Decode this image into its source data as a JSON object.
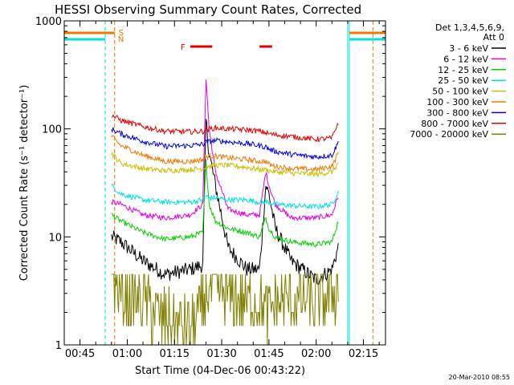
{
  "chart_data": {
    "type": "line",
    "title": "HESSI Observing Summary Count Rates, Corrected",
    "xlabel": "Start Time (04-Dec-06 00:43:22)",
    "ylabel": "Corrected Count Rate (s⁻¹ detector⁻¹)",
    "y_scale": "log",
    "ylim": [
      1,
      1000
    ],
    "xlim": [
      "00:40",
      "02:22"
    ],
    "x_ticks": [
      "00:45",
      "01:00",
      "01:15",
      "01:30",
      "01:45",
      "02:00",
      "02:15"
    ],
    "y_ticks": [
      "1",
      "10",
      "100",
      "1000"
    ],
    "grid": false,
    "legend_position": "right",
    "legend_header": [
      "Det 1,3,4,5,6,9,",
      "Att 0"
    ],
    "footer_stamp": "20-Mar-2010 08:55",
    "time_points": [
      "00:55",
      "00:58",
      "01:05",
      "01:12",
      "01:20",
      "01:24",
      "01:25",
      "01:26",
      "01:28",
      "01:32",
      "01:38",
      "01:42",
      "01:44",
      "01:45",
      "01:47",
      "01:52",
      "02:00",
      "02:05",
      "02:07"
    ],
    "series": [
      {
        "name": "3 - 6 keV",
        "color": "#000000",
        "values": [
          10,
          9,
          6,
          4.5,
          5,
          5.5,
          120,
          60,
          30,
          8,
          5,
          5,
          30,
          25,
          12,
          6,
          4,
          5,
          8
        ]
      },
      {
        "name": "6 - 12 keV",
        "color": "#e000e0",
        "values": [
          21,
          20,
          16,
          15,
          16,
          20,
          300,
          100,
          40,
          18,
          16,
          16,
          40,
          30,
          20,
          15,
          15,
          16,
          24
        ]
      },
      {
        "name": "12 - 25 keV",
        "color": "#00d000",
        "values": [
          16,
          14,
          11,
          9.5,
          10,
          11,
          50,
          20,
          14,
          12,
          11,
          10,
          15,
          12,
          10,
          9,
          8.5,
          9,
          14
        ]
      },
      {
        "name": "25 - 50 keV",
        "color": "#00e0e0",
        "values": [
          30,
          25,
          22,
          21,
          21,
          22,
          24,
          23,
          23,
          22,
          22,
          21,
          21,
          21,
          20,
          19.5,
          19,
          20,
          26
        ]
      },
      {
        "name": "50 - 100 keV",
        "color": "#c8c000",
        "values": [
          60,
          48,
          43,
          41,
          42,
          43,
          45,
          45,
          46,
          46,
          44,
          42,
          42,
          41,
          40,
          39,
          38,
          40,
          48
        ]
      },
      {
        "name": "100 - 300 keV",
        "color": "#f07800",
        "values": [
          85,
          70,
          57,
          50,
          50,
          52,
          55,
          56,
          56,
          54,
          52,
          50,
          50,
          47,
          45,
          43,
          42,
          45,
          60
        ]
      },
      {
        "name": "300 - 800 keV",
        "color": "#0000e0",
        "values": [
          100,
          90,
          77,
          69,
          70,
          72,
          75,
          76,
          78,
          76,
          73,
          70,
          68,
          65,
          62,
          58,
          55,
          57,
          75
        ]
      },
      {
        "name": "800 - 7000 keV",
        "color": "#e00000",
        "values": [
          135,
          120,
          105,
          95,
          94,
          95,
          98,
          100,
          102,
          100,
          98,
          95,
          92,
          90,
          88,
          85,
          80,
          82,
          115
        ]
      },
      {
        "name": "7000 - 20000 keV",
        "color": "#808000",
        "values": [
          4.5,
          3,
          2.5,
          1.7,
          1.5,
          2.2,
          3.5,
          3.2,
          3.2,
          3,
          2.5,
          2.5,
          2,
          2,
          2.5,
          2.5,
          2.5,
          3,
          3.2
        ]
      }
    ],
    "vertical_markers": [
      {
        "label": "",
        "time": "00:53",
        "color": "#00e0e0",
        "style": "dashed"
      },
      {
        "label": "N",
        "time": "00:56",
        "color": "#f07800",
        "style": "dashed"
      },
      {
        "label": "S",
        "time": "00:56",
        "color": "#f07800",
        "style": "dashed"
      },
      {
        "label": "",
        "time": "02:10",
        "color": "#00e0e0",
        "style": "solid"
      },
      {
        "label": "",
        "time": "02:18",
        "color": "#f07800",
        "style": "dashed"
      }
    ],
    "flare_label": "F",
    "flare_intervals": [
      [
        "01:20",
        "01:27"
      ],
      [
        "01:42",
        "01:46"
      ]
    ]
  }
}
